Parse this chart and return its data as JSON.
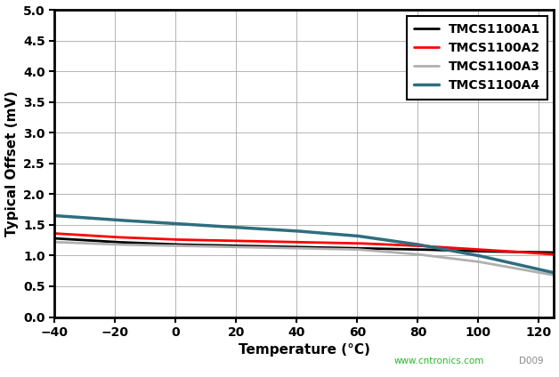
{
  "xlabel": "Temperature (°C)",
  "ylabel": "Typical Offset (mV)",
  "xlim": [
    -40,
    125
  ],
  "ylim": [
    0,
    5
  ],
  "xticks": [
    -40,
    -20,
    0,
    20,
    40,
    60,
    80,
    100,
    120
  ],
  "yticks": [
    0,
    0.5,
    1.0,
    1.5,
    2.0,
    2.5,
    3.0,
    3.5,
    4.0,
    4.5,
    5.0
  ],
  "series": [
    {
      "label": "TMCS1100A1",
      "color": "#000000",
      "linewidth": 2.0,
      "x": [
        -40,
        -20,
        0,
        20,
        40,
        60,
        80,
        100,
        125
      ],
      "y": [
        1.28,
        1.22,
        1.18,
        1.16,
        1.14,
        1.12,
        1.1,
        1.07,
        1.05
      ]
    },
    {
      "label": "TMCS1100A2",
      "color": "#ff0000",
      "linewidth": 2.0,
      "x": [
        -40,
        -20,
        0,
        20,
        40,
        60,
        80,
        100,
        125
      ],
      "y": [
        1.36,
        1.3,
        1.26,
        1.24,
        1.22,
        1.2,
        1.16,
        1.1,
        1.02
      ]
    },
    {
      "label": "TMCS1100A3",
      "color": "#b0b0b0",
      "linewidth": 2.0,
      "x": [
        -40,
        -20,
        0,
        20,
        40,
        60,
        80,
        100,
        125
      ],
      "y": [
        1.22,
        1.18,
        1.16,
        1.14,
        1.12,
        1.1,
        1.02,
        0.9,
        0.68
      ]
    },
    {
      "label": "TMCS1100A4",
      "color": "#2e6e7e",
      "linewidth": 2.5,
      "x": [
        -40,
        -20,
        0,
        20,
        40,
        60,
        80,
        100,
        125
      ],
      "y": [
        1.65,
        1.58,
        1.52,
        1.46,
        1.4,
        1.32,
        1.18,
        1.0,
        0.72
      ]
    }
  ],
  "background_color": "#ffffff",
  "watermark": "www.cntronics.com",
  "watermark_color": "#22bb22",
  "fig_id": "D009"
}
